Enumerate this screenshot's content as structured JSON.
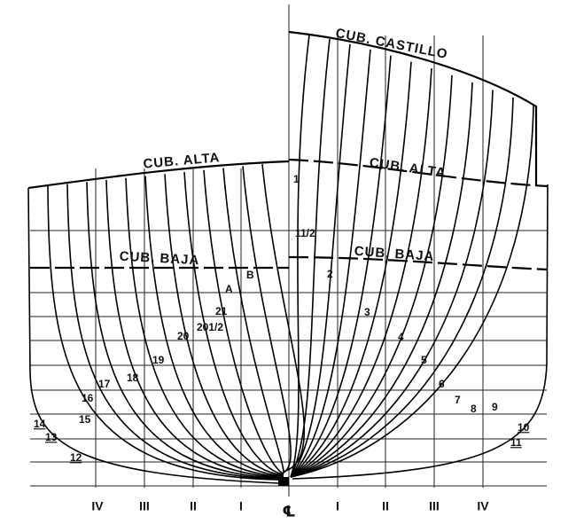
{
  "deck_labels": {
    "castillo": "CUB. CASTILLO",
    "alta_aft": "CUB. ALTA",
    "alta_fwd": "CUB. ALTA",
    "baja_aft": "CUB. BAJA",
    "baja_fwd": "CUB. BAJA"
  },
  "stations_fwd": [
    "1",
    "11/2",
    "2",
    "3",
    "4",
    "5",
    "6",
    "7",
    "8",
    "9",
    "10",
    "11"
  ],
  "stations_aft": [
    "B",
    "A",
    "21",
    "201/2",
    "20",
    "19",
    "18",
    "17",
    "16",
    "15",
    "14",
    "13",
    "12"
  ],
  "buttocks_aft": [
    "IV",
    "III",
    "II",
    "I"
  ],
  "centerline": "℄",
  "buttocks_fwd": [
    "I",
    "II",
    "III",
    "IV"
  ]
}
